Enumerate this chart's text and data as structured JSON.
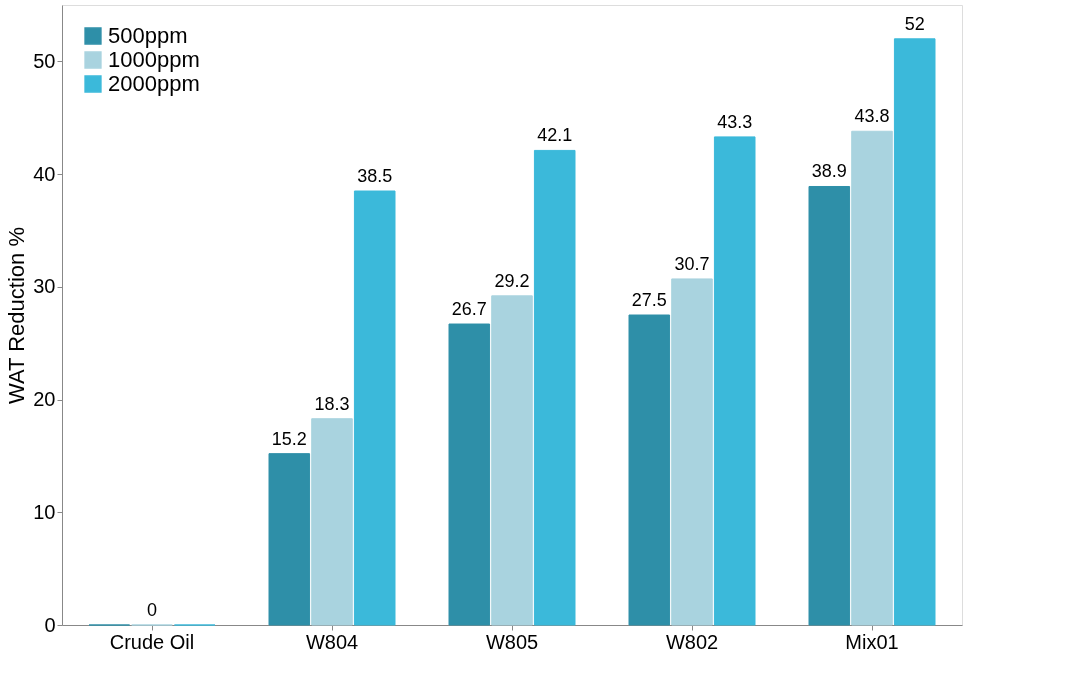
{
  "chart_data": {
    "type": "bar",
    "ylabel": "WAT Reduction %",
    "categories": [
      "Crude Oil",
      "W804",
      "W805",
      "W802",
      "Mix01"
    ],
    "series": [
      {
        "name": "500ppm",
        "color": "#2e8fa8",
        "values": [
          0,
          15.2,
          26.7,
          27.5,
          38.9
        ],
        "value_labels": [
          null,
          "15.2",
          "26.7",
          "27.5",
          "38.9"
        ]
      },
      {
        "name": "1000ppm",
        "color": "#a9d3df",
        "values": [
          0,
          18.3,
          29.2,
          30.7,
          43.8
        ],
        "value_labels": [
          "0",
          "18.3",
          "29.2",
          "30.7",
          "43.8"
        ]
      },
      {
        "name": "2000ppm",
        "color": "#3bb9da",
        "values": [
          0,
          38.5,
          42.1,
          43.3,
          52
        ],
        "value_labels": [
          null,
          "38.5",
          "42.1",
          "43.3",
          "52"
        ]
      }
    ],
    "ylim": [
      0,
      55
    ],
    "yticks": [
      0,
      10,
      20,
      30,
      40,
      50
    ],
    "grid": false,
    "legend": "top left"
  }
}
